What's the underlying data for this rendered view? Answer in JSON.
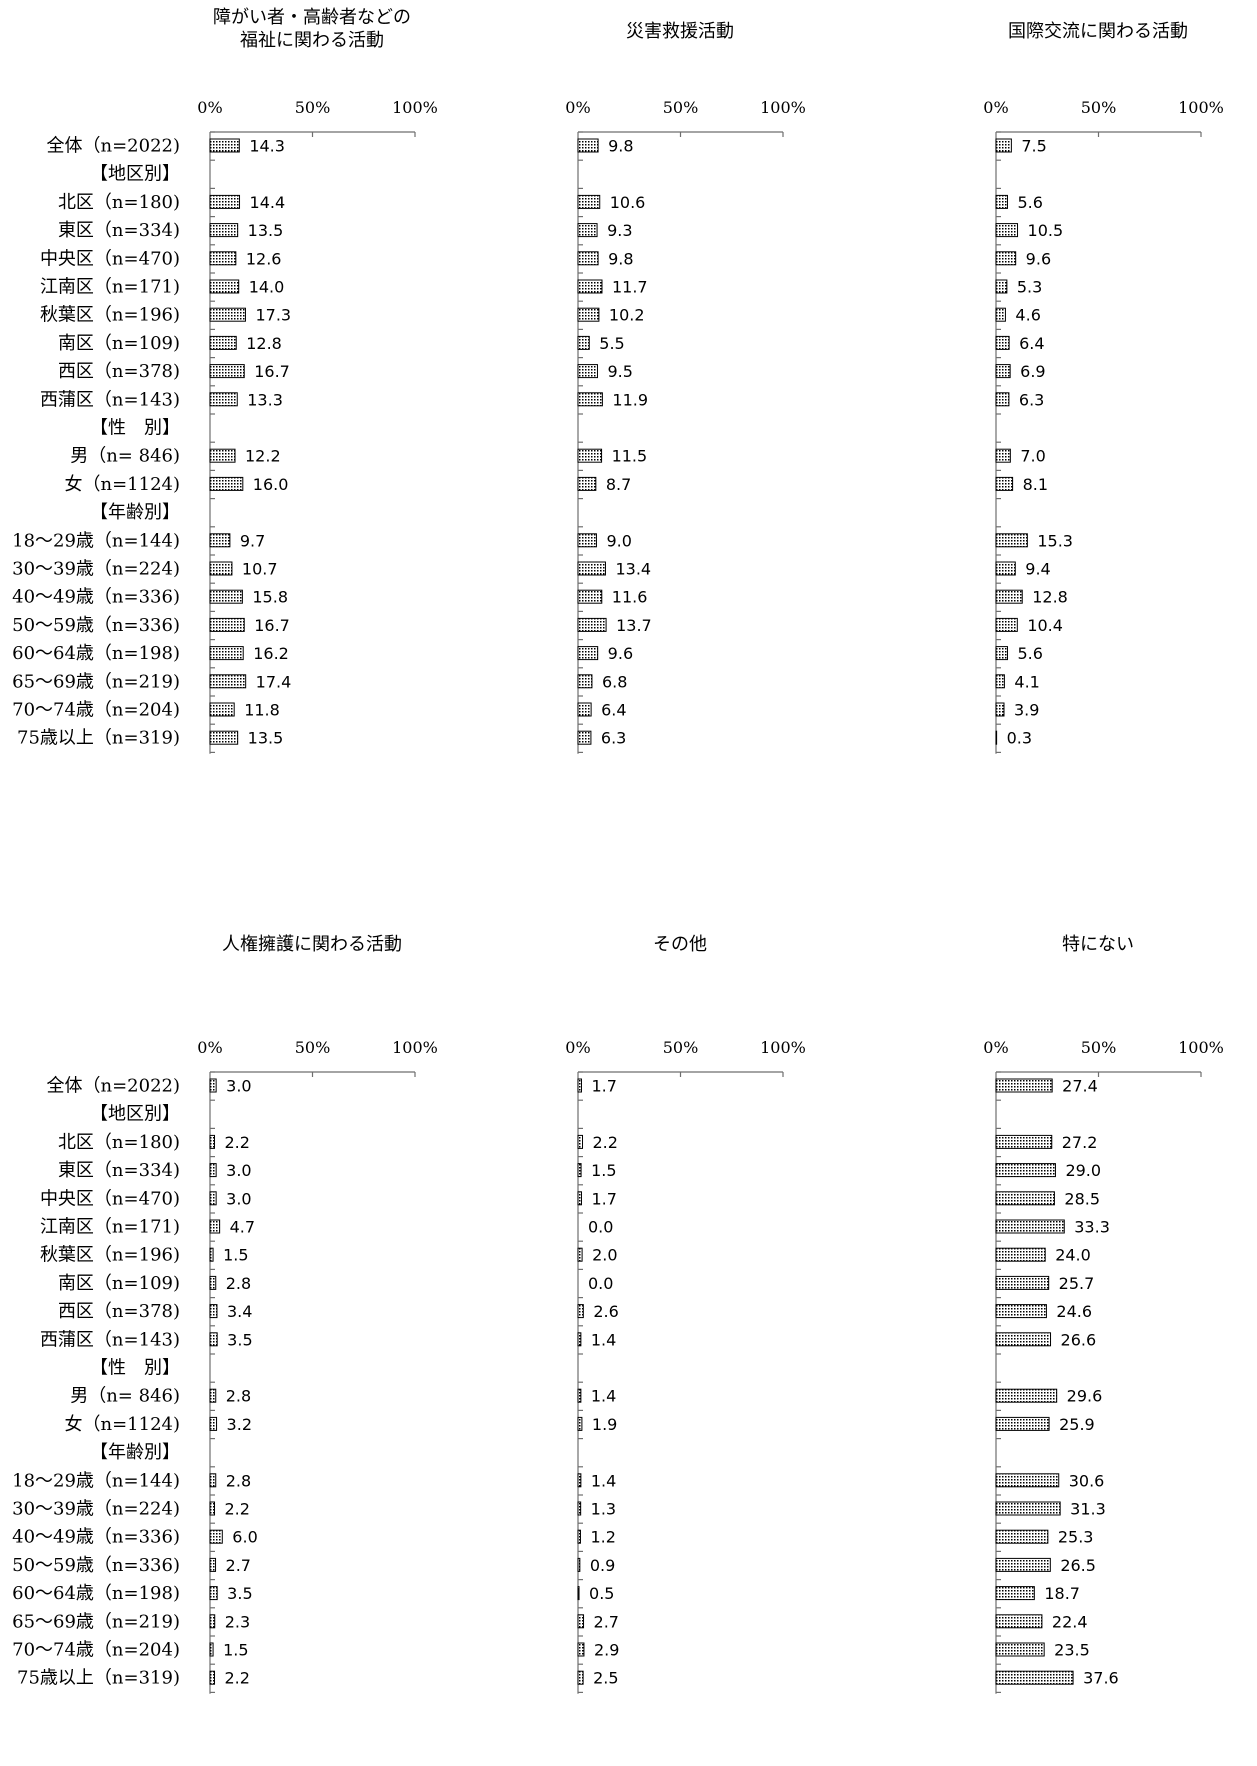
{
  "chart_data": {
    "type": "bar",
    "orientation": "horizontal",
    "xlim": [
      0,
      100
    ],
    "tick_labels": [
      "0%",
      "50%",
      "100%"
    ],
    "categories": [
      {
        "label": "全体（n=2022)",
        "group": false
      },
      {
        "label": "【地区別】",
        "group": true
      },
      {
        "label": "北区（n=180)",
        "group": false
      },
      {
        "label": "東区（n=334)",
        "group": false
      },
      {
        "label": "中央区（n=470)",
        "group": false
      },
      {
        "label": "江南区（n=171)",
        "group": false
      },
      {
        "label": "秋葉区（n=196)",
        "group": false
      },
      {
        "label": "南区（n=109)",
        "group": false
      },
      {
        "label": "西区（n=378)",
        "group": false
      },
      {
        "label": "西蒲区（n=143)",
        "group": false
      },
      {
        "label": "【性　別】",
        "group": true
      },
      {
        "label": "男（n= 846)",
        "group": false
      },
      {
        "label": "女（n=1124)",
        "group": false
      },
      {
        "label": "【年齢別】",
        "group": true
      },
      {
        "label": "18～29歳（n=144)",
        "group": false
      },
      {
        "label": "30～39歳（n=224)",
        "group": false
      },
      {
        "label": "40～49歳（n=336)",
        "group": false
      },
      {
        "label": "50～59歳（n=336)",
        "group": false
      },
      {
        "label": "60～64歳（n=198)",
        "group": false
      },
      {
        "label": "65～69歳（n=219)",
        "group": false
      },
      {
        "label": "70～74歳（n=204)",
        "group": false
      },
      {
        "label": "75歳以上（n=319)",
        "group": false
      }
    ],
    "panels": [
      {
        "title_lines": [
          "障がい者・高齢者などの",
          "福祉に関わる活動"
        ],
        "values": [
          14.3,
          null,
          14.4,
          13.5,
          12.6,
          14.0,
          17.3,
          12.8,
          16.7,
          13.3,
          null,
          12.2,
          16.0,
          null,
          9.7,
          10.7,
          15.8,
          16.7,
          16.2,
          17.4,
          11.8,
          13.5
        ]
      },
      {
        "title_lines": [
          "災害救援活動"
        ],
        "values": [
          9.8,
          null,
          10.6,
          9.3,
          9.8,
          11.7,
          10.2,
          5.5,
          9.5,
          11.9,
          null,
          11.5,
          8.7,
          null,
          9.0,
          13.4,
          11.6,
          13.7,
          9.6,
          6.8,
          6.4,
          6.3
        ]
      },
      {
        "title_lines": [
          "国際交流に関わる活動"
        ],
        "values": [
          7.5,
          null,
          5.6,
          10.5,
          9.6,
          5.3,
          4.6,
          6.4,
          6.9,
          6.3,
          null,
          7.0,
          8.1,
          null,
          15.3,
          9.4,
          12.8,
          10.4,
          5.6,
          4.1,
          3.9,
          0.3
        ]
      },
      {
        "title_lines": [
          "人権擁護に関わる活動"
        ],
        "values": [
          3.0,
          null,
          2.2,
          3.0,
          3.0,
          4.7,
          1.5,
          2.8,
          3.4,
          3.5,
          null,
          2.8,
          3.2,
          null,
          2.8,
          2.2,
          6.0,
          2.7,
          3.5,
          2.3,
          1.5,
          2.2
        ]
      },
      {
        "title_lines": [
          "その他"
        ],
        "values": [
          1.7,
          null,
          2.2,
          1.5,
          1.7,
          0.0,
          2.0,
          0.0,
          2.6,
          1.4,
          null,
          1.4,
          1.9,
          null,
          1.4,
          1.3,
          1.2,
          0.9,
          0.5,
          2.7,
          2.9,
          2.5
        ]
      },
      {
        "title_lines": [
          "特にない"
        ],
        "values": [
          27.4,
          null,
          27.2,
          29.0,
          28.5,
          33.3,
          24.0,
          25.7,
          24.6,
          26.6,
          null,
          29.6,
          25.9,
          null,
          30.6,
          31.3,
          25.3,
          26.5,
          18.7,
          22.4,
          23.5,
          37.6
        ]
      }
    ]
  }
}
